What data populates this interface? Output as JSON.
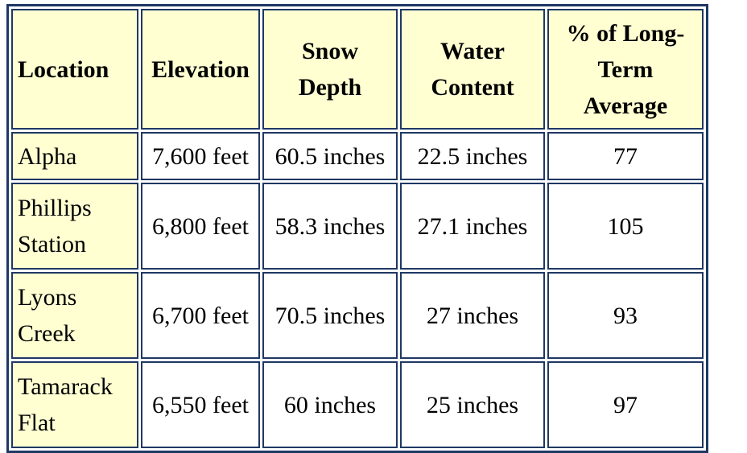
{
  "table": {
    "header": [
      "Location",
      "Elevation",
      "Snow Depth",
      "Water Content",
      "% of Long-Term Average"
    ],
    "rows": [
      [
        "Alpha",
        "7,600 feet",
        "60.5 inches",
        "22.5 inches",
        "77"
      ],
      [
        "Phillips Station",
        "6,800 feet",
        "58.3 inches",
        "27.1 inches",
        "105"
      ],
      [
        "Lyons Creek",
        "6,700 feet",
        "70.5 inches",
        "27 inches",
        "93"
      ],
      [
        "Tamarack Flat",
        "6,550 feet",
        "60 inches",
        "25 inches",
        "97"
      ]
    ]
  }
}
